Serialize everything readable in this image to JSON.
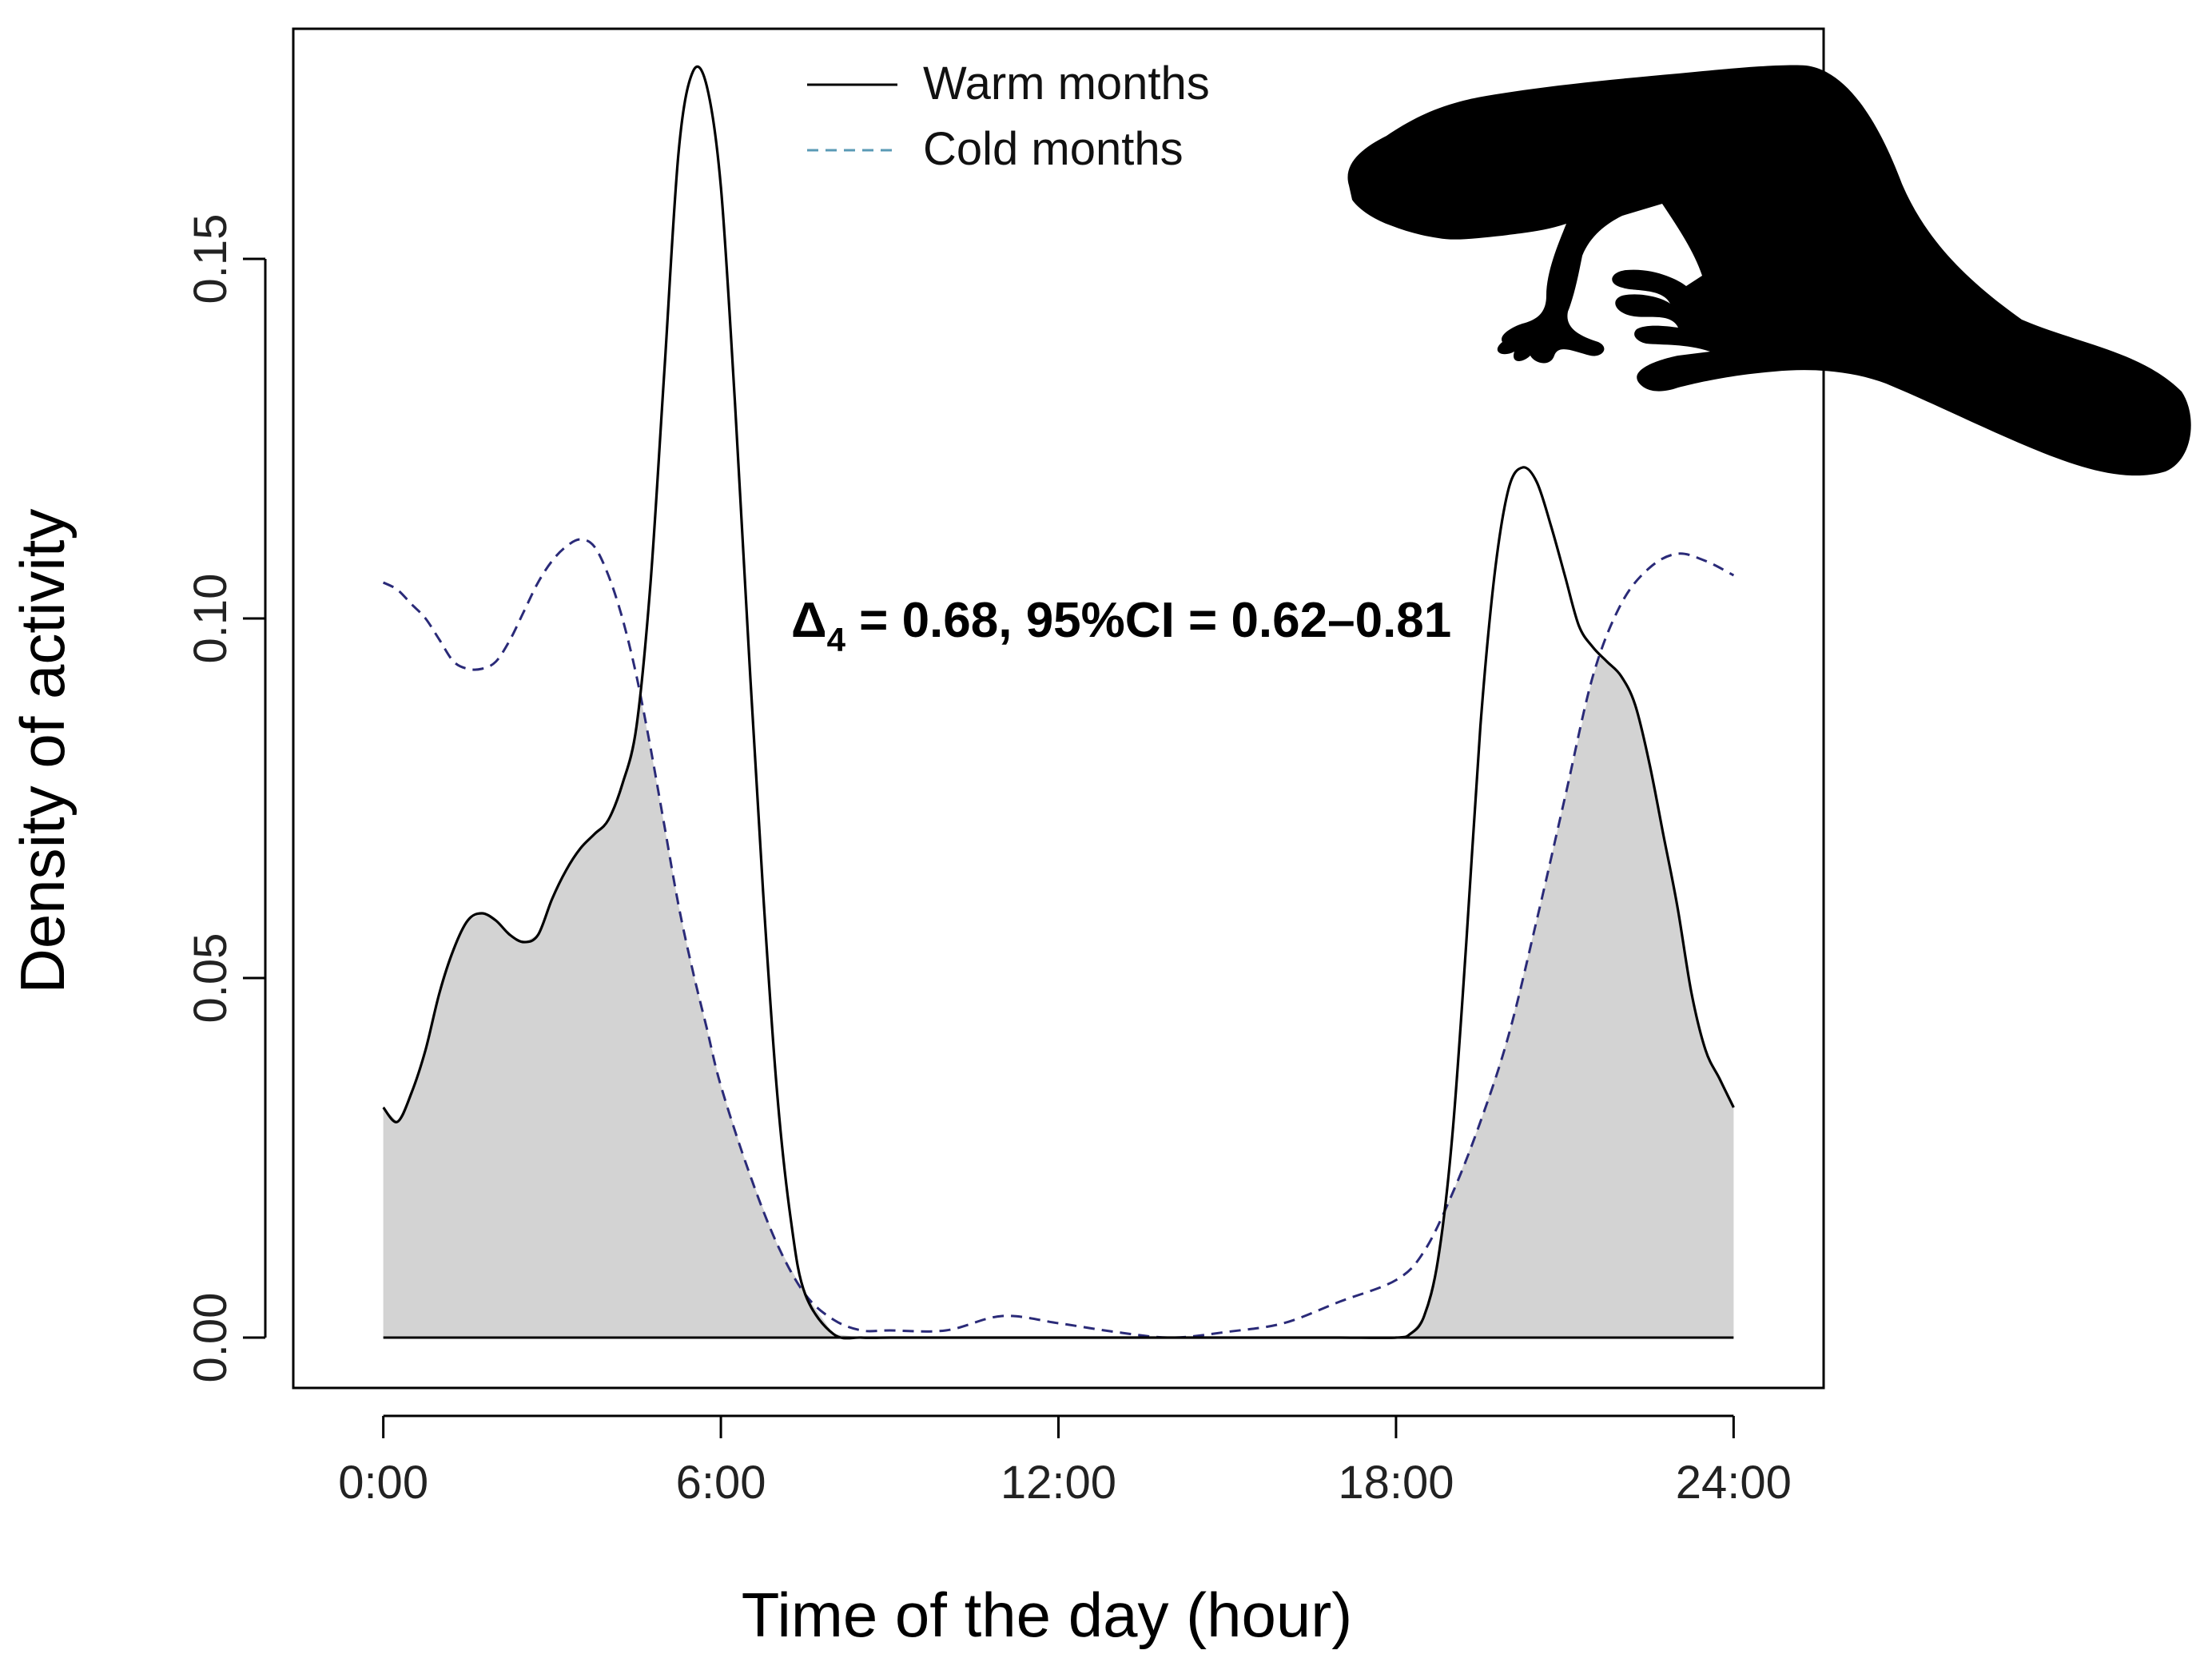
{
  "chart_data": {
    "type": "line",
    "title": "",
    "xlabel": "Time of the day (hour)",
    "ylabel": "Density of activity",
    "xlim": [
      -1.6,
      25.6
    ],
    "ylim": [
      -0.007,
      0.182
    ],
    "x_ticks": [
      0,
      6,
      12,
      18,
      24
    ],
    "x_tick_labels": [
      "0:00",
      "6:00",
      "12:00",
      "18:00",
      "24:00"
    ],
    "y_ticks": [
      0,
      0.05,
      0.1,
      0.15
    ],
    "y_tick_labels": [
      "0.00",
      "0.05",
      "0.10",
      "0.15"
    ],
    "grid": false,
    "legend_position": "top-center",
    "annotation": {
      "delta_symbol": "Δ",
      "delta_subscript": "4",
      "text": " = 0.68, 95%CI = 0.62–0.81"
    },
    "overlap_fill_color": "#d3d3d3",
    "silhouette": "beaver-silhouette",
    "series": [
      {
        "name": "Warm months",
        "style": "solid",
        "color": "#000000",
        "x": [
          0,
          0.25,
          0.5,
          0.75,
          1.0,
          1.25,
          1.5,
          1.75,
          2.0,
          2.25,
          2.5,
          2.75,
          3.0,
          3.25,
          3.5,
          3.75,
          4.0,
          4.25,
          4.5,
          4.75,
          5.0,
          5.25,
          5.5,
          5.75,
          6.0,
          6.25,
          6.5,
          6.75,
          7.0,
          7.25,
          7.5,
          8.0,
          8.5,
          9,
          10,
          11,
          12,
          13,
          14,
          15,
          16,
          17,
          18.0,
          18.25,
          18.5,
          18.75,
          19.0,
          19.25,
          19.5,
          19.75,
          20.0,
          20.25,
          20.5,
          20.75,
          21.0,
          21.25,
          21.5,
          21.75,
          22.0,
          22.25,
          22.5,
          22.75,
          23.0,
          23.25,
          23.5,
          23.75,
          24.0
        ],
        "y": [
          0.032,
          0.03,
          0.034,
          0.04,
          0.048,
          0.054,
          0.058,
          0.059,
          0.058,
          0.056,
          0.055,
          0.056,
          0.061,
          0.065,
          0.068,
          0.07,
          0.072,
          0.077,
          0.085,
          0.105,
          0.135,
          0.165,
          0.176,
          0.174,
          0.16,
          0.13,
          0.095,
          0.062,
          0.034,
          0.016,
          0.006,
          0.0005,
          0,
          0,
          0,
          0,
          0,
          0,
          0,
          0,
          0,
          0,
          0,
          0.0005,
          0.003,
          0.011,
          0.028,
          0.055,
          0.085,
          0.106,
          0.118,
          0.121,
          0.119,
          0.113,
          0.106,
          0.099,
          0.096,
          0.094,
          0.092,
          0.088,
          0.08,
          0.07,
          0.06,
          0.048,
          0.04,
          0.036,
          0.032
        ]
      },
      {
        "name": "Cold months",
        "style": "dashed",
        "color": "#2a2a78",
        "x": [
          0,
          0.25,
          0.5,
          0.75,
          1.0,
          1.25,
          1.5,
          1.75,
          2.0,
          2.25,
          2.5,
          2.75,
          3.0,
          3.25,
          3.5,
          3.75,
          4.0,
          4.25,
          4.5,
          4.75,
          5.0,
          5.25,
          5.5,
          5.75,
          6.0,
          6.5,
          7.0,
          7.5,
          8.0,
          8.5,
          9,
          10,
          11,
          12,
          13,
          14,
          15,
          16,
          17,
          18,
          18.5,
          19.0,
          19.5,
          20.0,
          20.5,
          21.0,
          21.5,
          22.0,
          22.5,
          23.0,
          23.5,
          24.0
        ],
        "y": [
          0.105,
          0.104,
          0.102,
          0.1,
          0.097,
          0.094,
          0.093,
          0.093,
          0.094,
          0.097,
          0.101,
          0.105,
          0.108,
          0.11,
          0.111,
          0.11,
          0.106,
          0.1,
          0.092,
          0.082,
          0.071,
          0.06,
          0.051,
          0.043,
          0.035,
          0.023,
          0.013,
          0.006,
          0.0025,
          0.001,
          0.001,
          0.001,
          0.003,
          0.002,
          0.0008,
          0,
          0.0008,
          0.002,
          0.005,
          0.008,
          0.012,
          0.02,
          0.03,
          0.042,
          0.058,
          0.075,
          0.092,
          0.102,
          0.107,
          0.109,
          0.108,
          0.106
        ]
      }
    ]
  }
}
